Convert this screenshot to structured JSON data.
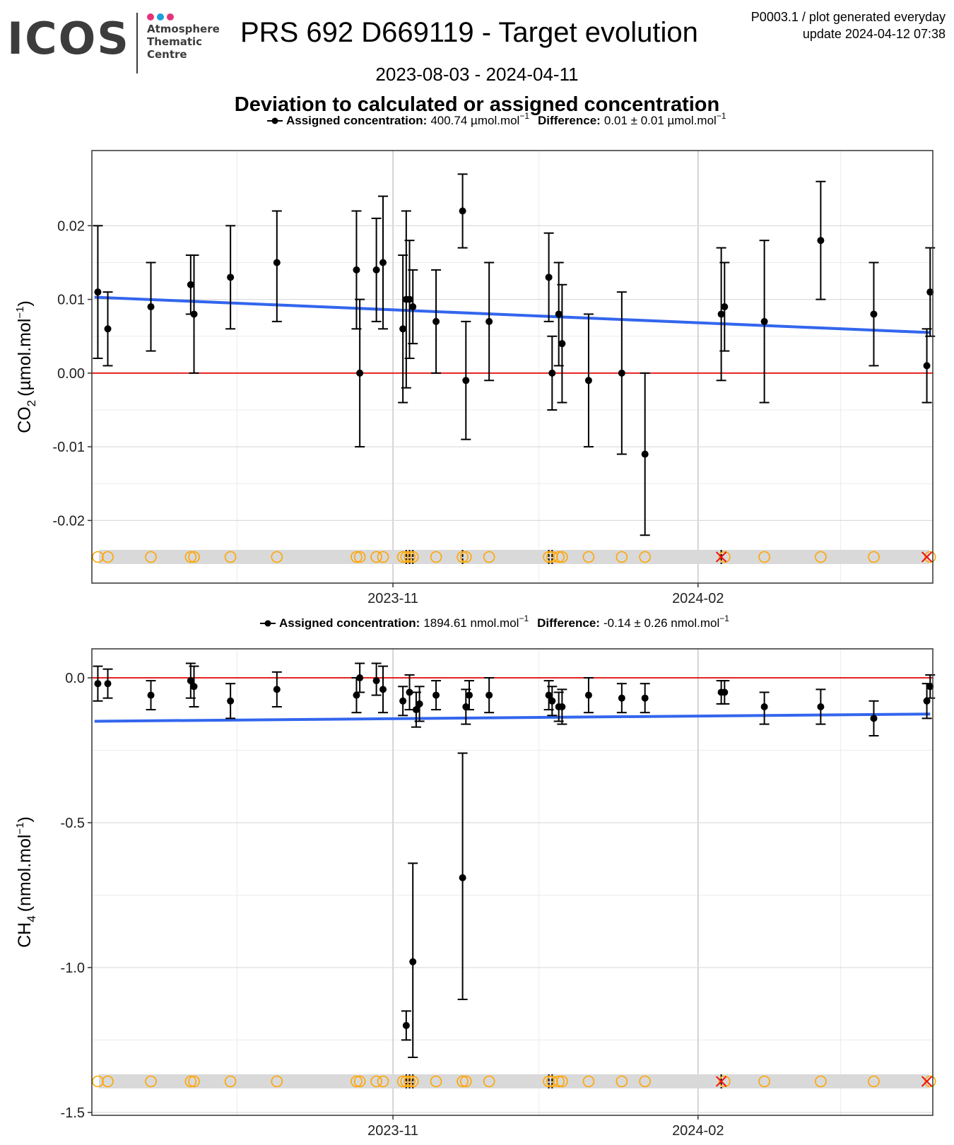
{
  "header": {
    "logo": {
      "word": "ICOS",
      "lines": [
        "Atmosphere",
        "Thematic",
        "Centre"
      ],
      "dot_colors": [
        "#e5337a",
        "#1aa0dc",
        "#e5337a"
      ]
    },
    "title": "PRS 692 D669119 - Target evolution",
    "meta_lines": [
      "P0003.1 / plot generated everyday",
      "update  2024-04-12 07:38"
    ],
    "date_range": "2023-08-03 - 2024-04-11",
    "subtitle": "Deviation to calculated or assigned concentration"
  },
  "colors": {
    "trend": "#3366ee",
    "zero_line": "#e52222",
    "flag_circle": "#ffa500",
    "flag_cross": "#ee1111",
    "band": "#d9d9d9",
    "points": "#000000"
  },
  "chart_data": [
    {
      "type": "scatter",
      "ylabel_main": "CO",
      "ylabel_sub": "2",
      "ylabel_unit": "(µmol.mol",
      "legend": {
        "label": "Assigned concentration:",
        "value": "400.74 µmol.mol",
        "diff_label": "Difference:",
        "diff_value": "0.01 ± 0.01 µmol.mol"
      },
      "ylim": [
        -0.0285,
        0.0302
      ],
      "yticks": [
        0.02,
        0.01,
        0.0,
        -0.01,
        -0.02
      ],
      "ytick_labels": [
        "0.02",
        "0.01",
        "0.00",
        "-0.01",
        "-0.02"
      ],
      "xticks": [
        "2023-11",
        "2024-02"
      ],
      "trend": {
        "start": 0.0103,
        "end": 0.0055
      },
      "points": [
        {
          "x": "2023-08-04",
          "y": 0.011,
          "lo": 0.002,
          "hi": 0.02
        },
        {
          "x": "2023-08-07",
          "y": 0.006,
          "lo": 0.001,
          "hi": 0.011
        },
        {
          "x": "2023-08-20",
          "y": 0.009,
          "lo": 0.003,
          "hi": 0.015
        },
        {
          "x": "2023-09-01",
          "y": 0.012,
          "lo": 0.008,
          "hi": 0.016
        },
        {
          "x": "2023-09-02",
          "y": 0.008,
          "lo": 0.0,
          "hi": 0.016
        },
        {
          "x": "2023-09-13",
          "y": 0.013,
          "lo": 0.006,
          "hi": 0.02
        },
        {
          "x": "2023-09-27",
          "y": 0.015,
          "lo": 0.007,
          "hi": 0.022
        },
        {
          "x": "2023-10-21",
          "y": 0.014,
          "lo": 0.006,
          "hi": 0.022
        },
        {
          "x": "2023-10-22",
          "y": 0.0,
          "lo": -0.01,
          "hi": 0.01
        },
        {
          "x": "2023-10-27",
          "y": 0.014,
          "lo": 0.007,
          "hi": 0.021
        },
        {
          "x": "2023-10-29",
          "y": 0.015,
          "lo": 0.006,
          "hi": 0.024
        },
        {
          "x": "2023-11-04",
          "y": 0.006,
          "lo": -0.004,
          "hi": 0.016
        },
        {
          "x": "2023-11-05",
          "y": 0.01,
          "lo": -0.002,
          "hi": 0.022
        },
        {
          "x": "2023-11-06",
          "y": 0.01,
          "lo": 0.002,
          "hi": 0.018
        },
        {
          "x": "2023-11-07",
          "y": 0.009,
          "lo": 0.004,
          "hi": 0.014
        },
        {
          "x": "2023-11-14",
          "y": 0.007,
          "lo": 0.0,
          "hi": 0.014
        },
        {
          "x": "2023-11-22",
          "y": 0.022,
          "lo": 0.017,
          "hi": 0.027
        },
        {
          "x": "2023-11-23",
          "y": -0.001,
          "lo": -0.009,
          "hi": 0.007
        },
        {
          "x": "2023-11-30",
          "y": 0.007,
          "lo": -0.001,
          "hi": 0.015
        },
        {
          "x": "2023-12-18",
          "y": 0.013,
          "lo": 0.007,
          "hi": 0.019
        },
        {
          "x": "2023-12-19",
          "y": 0.0,
          "lo": -0.005,
          "hi": 0.005
        },
        {
          "x": "2023-12-21",
          "y": 0.008,
          "lo": 0.001,
          "hi": 0.015
        },
        {
          "x": "2023-12-22",
          "y": 0.004,
          "lo": -0.004,
          "hi": 0.012
        },
        {
          "x": "2023-12-30",
          "y": -0.001,
          "lo": -0.01,
          "hi": 0.008
        },
        {
          "x": "2024-01-09",
          "y": 0.0,
          "lo": -0.011,
          "hi": 0.011
        },
        {
          "x": "2024-01-16",
          "y": -0.011,
          "lo": -0.022,
          "hi": 0.0
        },
        {
          "x": "2024-02-08",
          "y": 0.008,
          "lo": -0.001,
          "hi": 0.017
        },
        {
          "x": "2024-02-09",
          "y": 0.009,
          "lo": 0.003,
          "hi": 0.015
        },
        {
          "x": "2024-02-21",
          "y": 0.007,
          "lo": -0.004,
          "hi": 0.018
        },
        {
          "x": "2024-03-09",
          "y": 0.018,
          "lo": 0.01,
          "hi": 0.026
        },
        {
          "x": "2024-03-25",
          "y": 0.008,
          "lo": 0.001,
          "hi": 0.015
        },
        {
          "x": "2024-04-10",
          "y": 0.001,
          "lo": -0.004,
          "hi": 0.006
        },
        {
          "x": "2024-04-11",
          "y": 0.011,
          "lo": 0.005,
          "hi": 0.017
        }
      ],
      "flag_circles": [
        "2023-08-04",
        "2023-08-07",
        "2023-08-20",
        "2023-09-01",
        "2023-09-02",
        "2023-09-13",
        "2023-09-27",
        "2023-10-21",
        "2023-10-22",
        "2023-10-27",
        "2023-10-29",
        "2023-11-04",
        "2023-11-05",
        "2023-11-06",
        "2023-11-07",
        "2023-11-14",
        "2023-11-22",
        "2023-11-23",
        "2023-11-30",
        "2023-12-18",
        "2023-12-19",
        "2023-12-21",
        "2023-12-22",
        "2023-12-30",
        "2024-01-09",
        "2024-01-16",
        "2024-02-09",
        "2024-02-21",
        "2024-03-09",
        "2024-03-25",
        "2024-04-11"
      ],
      "flag_crosses": [
        "2024-02-08",
        "2024-04-10"
      ],
      "flag_ticks": [
        "2023-11-05",
        "2023-11-06",
        "2023-11-07",
        "2023-11-22",
        "2023-12-18",
        "2023-12-19",
        "2024-02-08"
      ]
    },
    {
      "type": "scatter",
      "ylabel_main": "CH",
      "ylabel_sub": "4",
      "ylabel_unit": "(nmol.mol",
      "legend": {
        "label": "Assigned concentration:",
        "value": "1894.61 nmol.mol",
        "diff_label": "Difference:",
        "diff_value": "-0.14 ± 0.26 nmol.mol"
      },
      "ylim": [
        -1.51,
        0.1
      ],
      "yticks": [
        0.0,
        -0.5,
        -1.0,
        -1.5
      ],
      "ytick_labels": [
        "0.0",
        "-0.5",
        "-1.0",
        "-1.5"
      ],
      "xticks": [
        "2023-11",
        "2024-02"
      ],
      "trend": {
        "start": -0.15,
        "end": -0.125
      },
      "points": [
        {
          "x": "2023-08-04",
          "y": -0.02,
          "lo": -0.08,
          "hi": 0.04
        },
        {
          "x": "2023-08-07",
          "y": -0.02,
          "lo": -0.07,
          "hi": 0.03
        },
        {
          "x": "2023-08-20",
          "y": -0.06,
          "lo": -0.11,
          "hi": -0.01
        },
        {
          "x": "2023-09-01",
          "y": -0.01,
          "lo": -0.07,
          "hi": 0.05
        },
        {
          "x": "2023-09-02",
          "y": -0.03,
          "lo": -0.1,
          "hi": 0.04
        },
        {
          "x": "2023-09-13",
          "y": -0.08,
          "lo": -0.14,
          "hi": -0.02
        },
        {
          "x": "2023-09-27",
          "y": -0.04,
          "lo": -0.1,
          "hi": 0.02
        },
        {
          "x": "2023-10-21",
          "y": -0.06,
          "lo": -0.12,
          "hi": 0.0
        },
        {
          "x": "2023-10-22",
          "y": 0.0,
          "lo": -0.05,
          "hi": 0.05
        },
        {
          "x": "2023-10-27",
          "y": -0.01,
          "lo": -0.06,
          "hi": 0.05
        },
        {
          "x": "2023-10-29",
          "y": -0.04,
          "lo": -0.12,
          "hi": 0.04
        },
        {
          "x": "2023-11-04",
          "y": -0.08,
          "lo": -0.13,
          "hi": -0.03
        },
        {
          "x": "2023-11-05",
          "y": -1.2,
          "lo": -1.25,
          "hi": -1.15
        },
        {
          "x": "2023-11-06",
          "y": -0.05,
          "lo": -0.11,
          "hi": 0.01
        },
        {
          "x": "2023-11-07",
          "y": -0.98,
          "lo": -1.31,
          "hi": -0.64
        },
        {
          "x": "2023-11-08",
          "y": -0.11,
          "lo": -0.17,
          "hi": -0.05
        },
        {
          "x": "2023-11-09",
          "y": -0.09,
          "lo": -0.15,
          "hi": -0.03
        },
        {
          "x": "2023-11-14",
          "y": -0.06,
          "lo": -0.11,
          "hi": -0.01
        },
        {
          "x": "2023-11-22",
          "y": -0.69,
          "lo": -1.11,
          "hi": -0.26
        },
        {
          "x": "2023-11-23",
          "y": -0.1,
          "lo": -0.16,
          "hi": -0.04
        },
        {
          "x": "2023-11-24",
          "y": -0.06,
          "lo": -0.11,
          "hi": -0.01
        },
        {
          "x": "2023-11-30",
          "y": -0.06,
          "lo": -0.12,
          "hi": 0.0
        },
        {
          "x": "2023-12-18",
          "y": -0.06,
          "lo": -0.11,
          "hi": -0.01
        },
        {
          "x": "2023-12-19",
          "y": -0.08,
          "lo": -0.13,
          "hi": -0.03
        },
        {
          "x": "2023-12-21",
          "y": -0.1,
          "lo": -0.15,
          "hi": -0.05
        },
        {
          "x": "2023-12-22",
          "y": -0.1,
          "lo": -0.16,
          "hi": -0.04
        },
        {
          "x": "2023-12-30",
          "y": -0.06,
          "lo": -0.12,
          "hi": 0.0
        },
        {
          "x": "2024-01-09",
          "y": -0.07,
          "lo": -0.12,
          "hi": -0.02
        },
        {
          "x": "2024-01-16",
          "y": -0.07,
          "lo": -0.12,
          "hi": -0.02
        },
        {
          "x": "2024-02-08",
          "y": -0.05,
          "lo": -0.09,
          "hi": -0.01
        },
        {
          "x": "2024-02-09",
          "y": -0.05,
          "lo": -0.09,
          "hi": -0.01
        },
        {
          "x": "2024-02-21",
          "y": -0.1,
          "lo": -0.16,
          "hi": -0.05
        },
        {
          "x": "2024-03-09",
          "y": -0.1,
          "lo": -0.16,
          "hi": -0.04
        },
        {
          "x": "2024-03-25",
          "y": -0.14,
          "lo": -0.2,
          "hi": -0.08
        },
        {
          "x": "2024-04-10",
          "y": -0.08,
          "lo": -0.14,
          "hi": -0.02
        },
        {
          "x": "2024-04-11",
          "y": -0.03,
          "lo": -0.07,
          "hi": 0.01
        }
      ],
      "flag_circles": [
        "2023-08-04",
        "2023-08-07",
        "2023-08-20",
        "2023-09-01",
        "2023-09-02",
        "2023-09-13",
        "2023-09-27",
        "2023-10-21",
        "2023-10-22",
        "2023-10-27",
        "2023-10-29",
        "2023-11-04",
        "2023-11-05",
        "2023-11-06",
        "2023-11-07",
        "2023-11-14",
        "2023-11-22",
        "2023-11-23",
        "2023-11-30",
        "2023-12-18",
        "2023-12-19",
        "2023-12-21",
        "2023-12-22",
        "2023-12-30",
        "2024-01-09",
        "2024-01-16",
        "2024-02-09",
        "2024-02-21",
        "2024-03-09",
        "2024-03-25",
        "2024-04-11"
      ],
      "flag_crosses": [
        "2024-02-08",
        "2024-04-10"
      ],
      "flag_ticks": [
        "2023-11-05",
        "2023-11-06",
        "2023-11-07",
        "2023-12-18",
        "2023-12-19",
        "2024-02-08"
      ]
    }
  ]
}
